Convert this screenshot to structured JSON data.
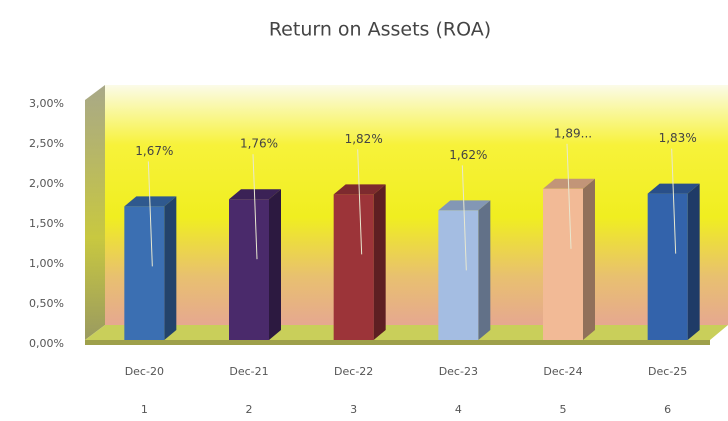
{
  "chart_data": {
    "type": "bar3d",
    "title": "Return on Assets (ROA)",
    "categories": [
      "Dec-20",
      "Dec-21",
      "Dec-22",
      "Dec-23",
      "Dec-24",
      "Dec-25"
    ],
    "subcategories": [
      "1",
      "2",
      "3",
      "4",
      "5",
      "6"
    ],
    "values": [
      1.67,
      1.76,
      1.82,
      1.62,
      1.89,
      1.83
    ],
    "value_labels": [
      "1,67%",
      "1,76%",
      "1,82%",
      "1,62%",
      "1,89...",
      "1,83%"
    ],
    "colors": [
      "#3b6fb2",
      "#4a2a6b",
      "#9c3439",
      "#a4bde2",
      "#f2ba96",
      "#3363ab"
    ],
    "ylim": [
      0,
      3
    ],
    "yticks": [
      {
        "value": 0,
        "label": "0,00%"
      },
      {
        "value": 0.5,
        "label": "0,50%"
      },
      {
        "value": 1,
        "label": "1,00%"
      },
      {
        "value": 1.5,
        "label": "1,50%"
      },
      {
        "value": 2,
        "label": "2,00%"
      },
      {
        "value": 2.5,
        "label": "2,50%"
      },
      {
        "value": 3,
        "label": "3,00%"
      }
    ],
    "grid": false
  }
}
